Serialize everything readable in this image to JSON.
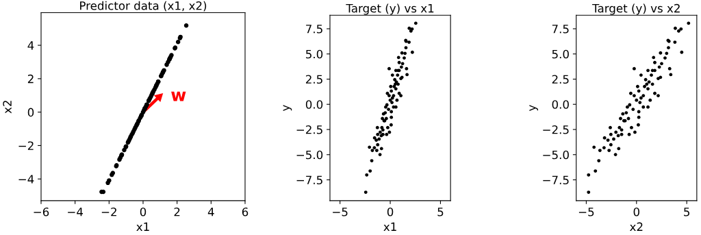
{
  "chart_data": [
    {
      "type": "scatter",
      "title": "Predictor data (x1, x2)",
      "xlabel": "x1",
      "ylabel": "x2",
      "xlim": [
        -6,
        6
      ],
      "ylim": [
        -5.3,
        5.95
      ],
      "xticks": [
        {
          "value": -6,
          "label": "−6"
        },
        {
          "value": -4,
          "label": "−4"
        },
        {
          "value": -2,
          "label": "−2"
        },
        0,
        2,
        4,
        6
      ],
      "yticks": [
        {
          "value": -4,
          "label": "−4"
        },
        {
          "value": -2,
          "label": "−2"
        },
        0,
        2,
        4
      ],
      "grid": false,
      "marker": "circle",
      "annotations": [
        "w"
      ],
      "series": [
        {
          "color": "#000000",
          "x": [
            2.54,
            1.89,
            2.06,
            2.17,
            1.87,
            1.54,
            1.58,
            1.56,
            2.2,
            1.62,
            1.67,
            1.47,
            1.17,
            0.83,
            0.89,
            1.23,
            1.39,
            1.11,
            0.78,
            1.17,
            1.06,
            0.89,
            0.56,
            0.22,
            0.78,
            0.61,
            1.06,
            0.89,
            0.56,
            0.45,
            -0.11,
            0.11,
            0.33,
            0.67,
            0.56,
            0.17,
            -0.11,
            -0.28,
            0,
            -0.33,
            0.11,
            -0.17,
            -0.45,
            -0.5,
            -0.67,
            -0.39,
            -0.61,
            0.11,
            0.09,
            -0.08,
            -0.36,
            -0.83,
            -1.0,
            -0.89,
            -1.28,
            -1.25,
            -1.11,
            -1.39,
            -1.56,
            -1.58,
            -1.34,
            -1.25,
            -1.02,
            -0.87,
            -0.73,
            -0.73,
            -2.07,
            -1.78,
            -1.84,
            -2.0,
            -2.34,
            -2.44,
            -0.56,
            -0.78,
            -0.25,
            0.22,
            0.39,
            0.33,
            0.05,
            0.5,
            0.73
          ],
          "values": [
            5.18,
            3.86,
            4.2,
            4.43,
            3.82,
            3.14,
            3.23,
            3.18,
            4.5,
            3.3,
            3.41,
            3.0,
            2.39,
            1.7,
            1.82,
            2.5,
            2.84,
            2.27,
            1.59,
            2.39,
            2.16,
            1.82,
            1.14,
            0.45,
            1.59,
            1.25,
            2.16,
            1.82,
            1.14,
            0.91,
            -0.23,
            0.23,
            0.68,
            1.36,
            1.14,
            0.34,
            -0.23,
            -0.57,
            0,
            -0.68,
            0.23,
            -0.34,
            -0.91,
            -1.02,
            -1.36,
            -0.8,
            -1.25,
            0.23,
            0.18,
            -0.16,
            -0.73,
            -1.7,
            -2.05,
            -1.82,
            -2.61,
            -2.55,
            -2.27,
            -2.84,
            -3.18,
            -3.23,
            -2.73,
            -2.55,
            -2.09,
            -1.77,
            -1.48,
            -1.48,
            -4.23,
            -3.64,
            -3.75,
            -4.09,
            -4.77,
            -4.77,
            -1.14,
            -1.59,
            -0.5,
            0.45,
            0.8,
            0.68,
            0.11,
            1.02,
            1.48
          ]
        }
      ]
    },
    {
      "type": "scatter",
      "title": "Target (y) vs x1",
      "xlabel": "x1",
      "ylabel": "y",
      "xlim": [
        -6,
        6
      ],
      "ylim": [
        -9.57,
        8.84
      ],
      "xticks": [
        {
          "value": -5,
          "label": "−5"
        },
        0,
        5
      ],
      "yticks": [
        {
          "value": -7.5,
          "label": "−7.5"
        },
        {
          "value": -5,
          "label": "−5.0"
        },
        {
          "value": -2.5,
          "label": "−2.5"
        },
        {
          "value": 0,
          "label": "0.0"
        },
        2.5,
        {
          "value": 5,
          "label": "5.0"
        },
        7.5
      ],
      "grid": false,
      "marker": "circle",
      "series": [
        {
          "color": "#000000",
          "x": [
            2.54,
            1.89,
            2.06,
            2.17,
            1.87,
            1.54,
            1.58,
            1.56,
            2.2,
            1.62,
            1.67,
            1.47,
            1.17,
            0.83,
            0.89,
            1.23,
            1.39,
            1.11,
            0.78,
            1.17,
            1.06,
            0.89,
            0.56,
            0.22,
            0.78,
            0.61,
            1.06,
            0.89,
            0.56,
            0.45,
            -0.11,
            0.11,
            0.33,
            0.67,
            0.56,
            0.17,
            -0.11,
            -0.28,
            0,
            -0.33,
            0.11,
            -0.17,
            -0.45,
            -0.5,
            -0.67,
            -0.39,
            -0.61,
            0.11,
            0.09,
            -0.08,
            -0.36,
            -0.83,
            -1.0,
            -0.89,
            -1.28,
            -1.25,
            -1.11,
            -1.39,
            -1.56,
            -1.58,
            -1.34,
            -1.25,
            -1.02,
            -0.87,
            -0.73,
            -0.73,
            -2.07,
            -1.78,
            -1.84,
            -2.0,
            -2.34,
            -2.44,
            -0.56,
            -0.78,
            -0.25,
            0.22,
            0.39,
            0.33,
            0.05,
            0.5,
            0.73
          ],
          "values": [
            8.05,
            7.55,
            7.28,
            7.48,
            6.17,
            6.35,
            6.26,
            5.62,
            5.17,
            3.54,
            2.95,
            5.06,
            5.1,
            4.65,
            4.15,
            4.04,
            4.6,
            3.7,
            3.36,
            2.68,
            2.56,
            3.36,
            3.36,
            2.9,
            2.0,
            2.22,
            0.86,
            1.09,
            1.54,
            2.45,
            3.54,
            1.32,
            0.86,
            0.41,
            -0.27,
            0.18,
            0.86,
            1.09,
            0.41,
            -0.05,
            -0.73,
            -0.5,
            -0.27,
            -0.84,
            -0.95,
            -1.41,
            -1.63,
            -1.29,
            -2.04,
            -2.77,
            -2.99,
            -2.31,
            -2.77,
            -3.11,
            -2.31,
            -2.99,
            -3.45,
            -3.56,
            -3.33,
            -4.31,
            -4.58,
            -4.01,
            -4.99,
            -4.4,
            -2.99,
            -2.54,
            -4.26,
            -4.58,
            -5.6,
            -6.62,
            -7.01,
            -8.73,
            -1.63,
            -1.41,
            -2.31,
            0.63,
            1.77,
            -0.27,
            1.77,
            2.0,
            2.9
          ]
        }
      ]
    },
    {
      "type": "scatter",
      "title": "Target (y) vs x2",
      "xlabel": "x2",
      "ylabel": "y",
      "xlim": [
        -6,
        6
      ],
      "ylim": [
        -9.57,
        8.84
      ],
      "xticks": [
        {
          "value": -5,
          "label": "−5"
        },
        0,
        5
      ],
      "yticks": [
        {
          "value": -7.5,
          "label": "−7.5"
        },
        {
          "value": -5,
          "label": "−5.0"
        },
        {
          "value": -2.5,
          "label": "−2.5"
        },
        {
          "value": 0,
          "label": "0.0"
        },
        2.5,
        {
          "value": 5,
          "label": "5.0"
        },
        7.5
      ],
      "grid": false,
      "marker": "circle",
      "series": [
        {
          "color": "#000000",
          "x": [
            5.18,
            3.86,
            4.2,
            4.43,
            3.82,
            3.14,
            3.23,
            3.18,
            4.5,
            3.3,
            3.41,
            3.0,
            2.39,
            1.7,
            1.82,
            2.5,
            2.84,
            2.27,
            1.59,
            2.39,
            2.16,
            1.82,
            1.14,
            0.45,
            1.59,
            1.25,
            2.16,
            1.82,
            1.14,
            0.91,
            -0.23,
            0.23,
            0.68,
            1.36,
            1.14,
            0.34,
            -0.23,
            -0.57,
            0,
            -0.68,
            0.23,
            -0.34,
            -0.91,
            -1.02,
            -1.36,
            -0.8,
            -1.25,
            0.23,
            0.18,
            -0.16,
            -0.73,
            -1.7,
            -2.05,
            -1.82,
            -2.61,
            -2.55,
            -2.27,
            -2.84,
            -3.18,
            -3.23,
            -2.73,
            -2.55,
            -2.09,
            -1.77,
            -1.48,
            -1.48,
            -4.23,
            -3.64,
            -3.75,
            -4.09,
            -4.77,
            -4.77,
            -1.14,
            -1.59,
            -0.5,
            0.45,
            0.8,
            0.68,
            0.11,
            1.02,
            1.48
          ],
          "values": [
            8.05,
            7.55,
            7.28,
            7.48,
            6.17,
            6.35,
            6.26,
            5.62,
            5.17,
            3.54,
            2.95,
            5.06,
            5.1,
            4.65,
            4.15,
            4.04,
            4.6,
            3.7,
            3.36,
            2.68,
            2.56,
            3.36,
            3.36,
            2.9,
            2.0,
            2.22,
            0.86,
            1.09,
            1.54,
            2.45,
            3.54,
            1.32,
            0.86,
            0.41,
            -0.27,
            0.18,
            0.86,
            1.09,
            0.41,
            -0.05,
            -0.73,
            -0.5,
            -0.27,
            -0.84,
            -0.95,
            -1.41,
            -1.63,
            -1.29,
            -2.04,
            -2.77,
            -2.99,
            -2.31,
            -2.77,
            -3.11,
            -2.31,
            -2.99,
            -3.45,
            -3.56,
            -3.33,
            -4.31,
            -4.58,
            -4.01,
            -4.99,
            -4.4,
            -2.99,
            -2.54,
            -4.26,
            -4.58,
            -5.6,
            -6.62,
            -7.01,
            -8.73,
            -1.63,
            -1.41,
            -2.31,
            0.63,
            1.77,
            -0.27,
            1.77,
            2.0,
            2.9
          ]
        }
      ]
    }
  ]
}
